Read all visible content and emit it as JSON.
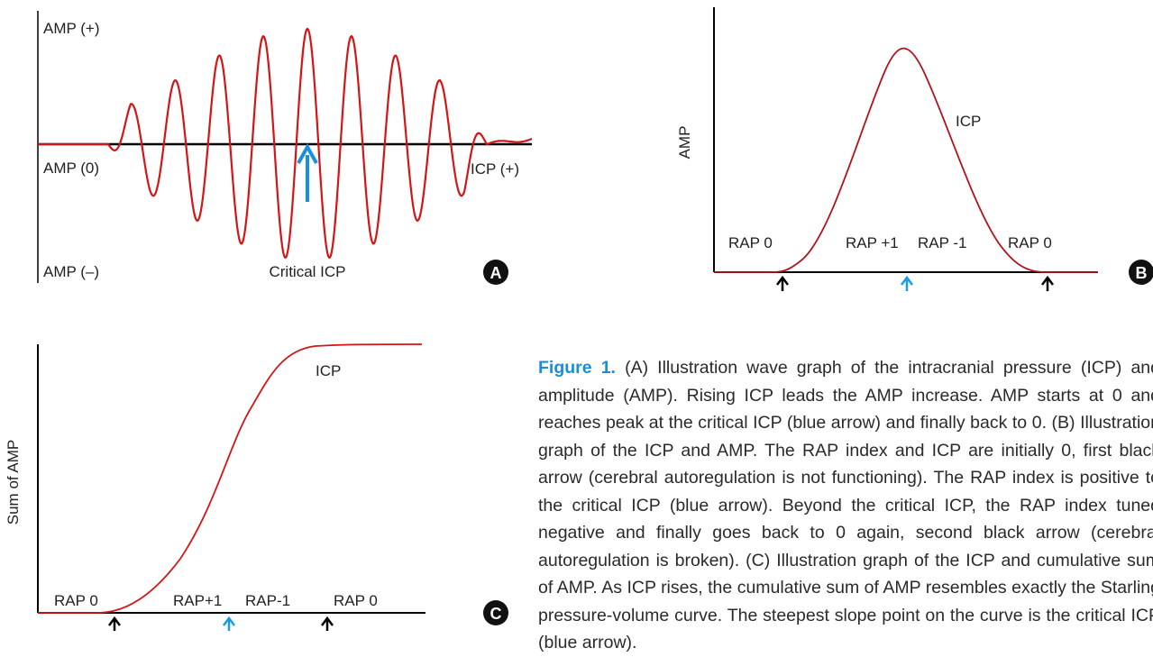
{
  "colors": {
    "curve": "#d41515",
    "critical_arrow": "#1a8fe0",
    "rap0_arrow": "#000000",
    "caption_lead": "#1a8fd6"
  },
  "panel_a": {
    "badge": "A",
    "amp_pos_label": "AMP (+)",
    "amp_zero_label": "AMP (0)",
    "amp_neg_label": "AMP (–)",
    "icp_label": "ICP (+)",
    "critical_label": "Critical ICP"
  },
  "panel_b": {
    "badge": "B",
    "y_label": "AMP",
    "curve_label": "ICP",
    "rap_labels": [
      "RAP 0",
      "RAP +1",
      "RAP -1",
      "RAP 0"
    ]
  },
  "panel_c": {
    "badge": "C",
    "y_label": "Sum of AMP",
    "curve_label": "ICP",
    "rap_labels": [
      "RAP 0",
      "RAP+1",
      "RAP-1",
      "RAP 0"
    ]
  },
  "caption": {
    "lead": "Figure 1.",
    "text": " (A) Illustration wave graph of the intracranial pressure (ICP) and amplitude (AMP). Rising ICP leads the AMP increase. AMP starts at 0 and reaches peak at the critical ICP (blue arrow) and finally back to 0. (B) Illustration graph of the ICP and AMP. The RAP index and ICP are initially 0, first black arrow (cerebral autoregulation is not functioning). The RAP index is positive to the critical ICP (blue arrow). Beyond the critical ICP, the RAP index tuned negative and finally goes back to 0 again, second black arrow (cerebral autoregulation is broken). (C) Illustration graph of the ICP and cumulative sum of AMP. As ICP rises, the cumulative sum of AMP resembles exactly the Starling pressure-volume curve. The steepest slope point on the curve is the critical ICP (blue arrow)."
  }
}
